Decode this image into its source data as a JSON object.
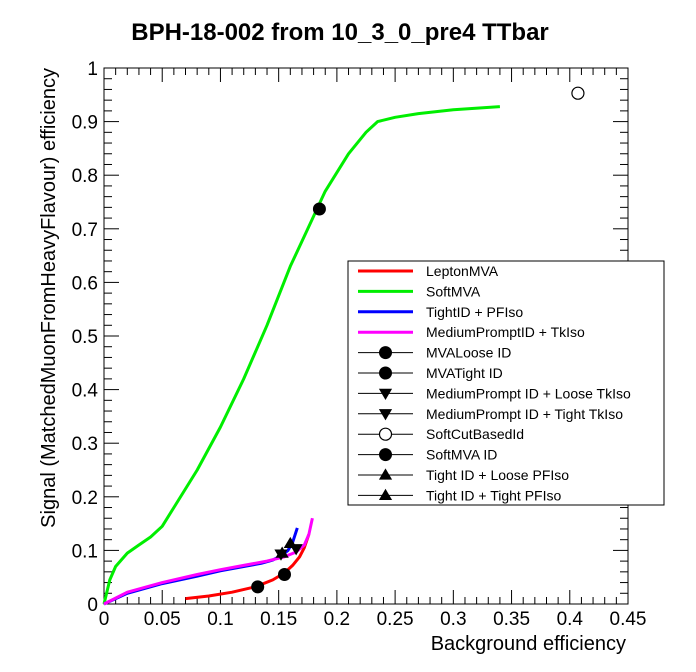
{
  "chart_data": {
    "type": "line",
    "title": "BPH-18-002 from 10_3_0_pre4 TTbar",
    "xlabel": "Background efficiency",
    "ylabel": "Signal (MatchedMuonFromHeavyFlavour) efficiency",
    "xlim": [
      0,
      0.45
    ],
    "ylim": [
      0,
      1
    ],
    "xticks": [
      "0",
      "0.05",
      "0.1",
      "0.15",
      "0.2",
      "0.25",
      "0.3",
      "0.35",
      "0.4",
      "0.45"
    ],
    "yticks": [
      "0",
      "0.1",
      "0.2",
      "0.3",
      "0.4",
      "0.5",
      "0.6",
      "0.7",
      "0.8",
      "0.9",
      "1"
    ],
    "grid": false,
    "legend_position": "right",
    "series": [
      {
        "name": "LeptonMVA",
        "kind": "line",
        "color": "#ff0000",
        "x": [
          0.07,
          0.09,
          0.11,
          0.13,
          0.145,
          0.155,
          0.162,
          0.168,
          0.172,
          0.176
        ],
        "y": [
          0.01,
          0.015,
          0.022,
          0.032,
          0.045,
          0.058,
          0.072,
          0.088,
          0.105,
          0.13
        ]
      },
      {
        "name": "SoftMVA",
        "kind": "line",
        "color": "#00ee00",
        "x": [
          0.0,
          0.005,
          0.01,
          0.02,
          0.03,
          0.04,
          0.05,
          0.06,
          0.08,
          0.1,
          0.12,
          0.14,
          0.16,
          0.175,
          0.19,
          0.21,
          0.225,
          0.235,
          0.25,
          0.27,
          0.3,
          0.34
        ],
        "y": [
          0.0,
          0.045,
          0.07,
          0.095,
          0.11,
          0.125,
          0.145,
          0.18,
          0.25,
          0.33,
          0.42,
          0.52,
          0.63,
          0.7,
          0.77,
          0.84,
          0.88,
          0.9,
          0.908,
          0.915,
          0.922,
          0.928
        ]
      },
      {
        "name": "TightID + PFIso",
        "kind": "line",
        "color": "#0000ff",
        "x": [
          0.0,
          0.02,
          0.05,
          0.08,
          0.1,
          0.12,
          0.135,
          0.145,
          0.152,
          0.158,
          0.162,
          0.166
        ],
        "y": [
          0.0,
          0.02,
          0.038,
          0.052,
          0.062,
          0.07,
          0.076,
          0.082,
          0.09,
          0.1,
          0.115,
          0.142
        ]
      },
      {
        "name": "MediumPromptID + TkIso",
        "kind": "line",
        "color": "#ff00ff",
        "x": [
          0.0,
          0.02,
          0.05,
          0.08,
          0.1,
          0.12,
          0.14,
          0.155,
          0.165,
          0.172,
          0.176,
          0.179
        ],
        "y": [
          0.0,
          0.022,
          0.04,
          0.055,
          0.064,
          0.072,
          0.08,
          0.088,
          0.097,
          0.11,
          0.13,
          0.16
        ]
      },
      {
        "name": "MVALoose ID",
        "kind": "marker",
        "marker": "circle-filled",
        "color": "#000000",
        "x": [
          0.155
        ],
        "y": [
          0.055
        ]
      },
      {
        "name": "MVATight ID",
        "kind": "marker",
        "marker": "circle-filled",
        "color": "#000000",
        "x": [
          0.132
        ],
        "y": [
          0.032
        ]
      },
      {
        "name": "MediumPrompt ID + Loose TkIso",
        "kind": "marker",
        "marker": "triangle-down",
        "color": "#000000",
        "x": [
          0.165
        ],
        "y": [
          0.103
        ]
      },
      {
        "name": "MediumPrompt ID + Tight TkIso",
        "kind": "marker",
        "marker": "triangle-down",
        "color": "#000000",
        "x": [
          0.152
        ],
        "y": [
          0.093
        ]
      },
      {
        "name": "SoftCutBasedId",
        "kind": "marker",
        "marker": "circle-open",
        "color": "#000000",
        "x": [
          0.407
        ],
        "y": [
          0.953
        ]
      },
      {
        "name": "SoftMVA ID",
        "kind": "marker",
        "marker": "circle-filled",
        "color": "#000000",
        "x": [
          0.185
        ],
        "y": [
          0.737
        ]
      },
      {
        "name": "Tight ID + Loose PFIso",
        "kind": "marker",
        "marker": "triangle-up",
        "color": "#000000",
        "x": [
          0.16
        ],
        "y": [
          0.113
        ]
      },
      {
        "name": "Tight ID + Tight PFIso",
        "kind": "marker",
        "marker": "triangle-up",
        "color": "#000000",
        "x": [
          0.153
        ],
        "y": [
          0.095
        ]
      }
    ]
  }
}
